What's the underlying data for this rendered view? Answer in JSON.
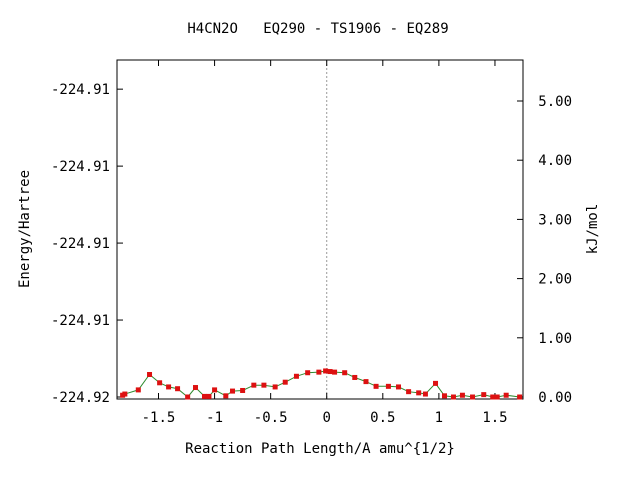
{
  "chart_data": {
    "type": "line",
    "title": "H4CN2O   EQ290 - TS1906 - EQ289",
    "xlabel": "Reaction Path Length/A amu^{1/2}",
    "ylabel_left": "Energy/Hartree",
    "ylabel_right": "kJ/mol",
    "xlim": [
      -1.87,
      1.75
    ],
    "ylim_kjmol": [
      0.0,
      5.7
    ],
    "x_ticks": [
      -1.5,
      -1.0,
      -0.5,
      0,
      0.5,
      1.0,
      1.5
    ],
    "x_tick_labels": [
      "-1.5",
      "-1",
      "-0.5",
      "0",
      "0.5",
      "1",
      "1.5"
    ],
    "left_ticks_kjmol": [
      0.0,
      1.3,
      2.6,
      3.9,
      5.2
    ],
    "left_tick_labels": [
      "-224.92",
      "-224.91",
      "-224.91",
      "-224.91",
      "-224.91"
    ],
    "right_ticks": [
      0.0,
      1.0,
      2.0,
      3.0,
      4.0,
      5.0
    ],
    "right_tick_labels": [
      "0.00",
      "1.00",
      "2.00",
      "3.00",
      "4.00",
      "5.00"
    ],
    "ts_marker_x": 0,
    "line_color": "#2e8b2e",
    "marker_color": "#dd1111",
    "series": [
      {
        "x": [
          -1.82,
          -1.8,
          -1.68,
          -1.58,
          -1.49,
          -1.41,
          -1.33,
          -1.24,
          -1.17,
          -1.09,
          -1.05,
          -1.0,
          -0.9,
          -0.84,
          -0.75,
          -0.65,
          -0.56,
          -0.46,
          -0.37,
          -0.27,
          -0.17,
          -0.07,
          -0.01,
          0.03,
          0.07,
          0.16,
          0.25,
          0.35,
          0.44,
          0.55,
          0.64,
          0.73,
          0.82,
          0.88,
          0.97,
          1.05,
          1.13,
          1.21,
          1.3,
          1.4,
          1.48,
          1.52,
          1.6,
          1.72
        ],
        "y": [
          0.03,
          0.05,
          0.12,
          0.38,
          0.24,
          0.17,
          0.14,
          0.0,
          0.16,
          0.01,
          0.01,
          0.12,
          0.02,
          0.1,
          0.11,
          0.2,
          0.2,
          0.17,
          0.25,
          0.35,
          0.41,
          0.42,
          0.44,
          0.43,
          0.42,
          0.41,
          0.33,
          0.26,
          0.18,
          0.18,
          0.17,
          0.09,
          0.07,
          0.05,
          0.23,
          0.02,
          0.0,
          0.03,
          0.0,
          0.04,
          0.0,
          0.0,
          0.03,
          0.0
        ]
      }
    ]
  }
}
